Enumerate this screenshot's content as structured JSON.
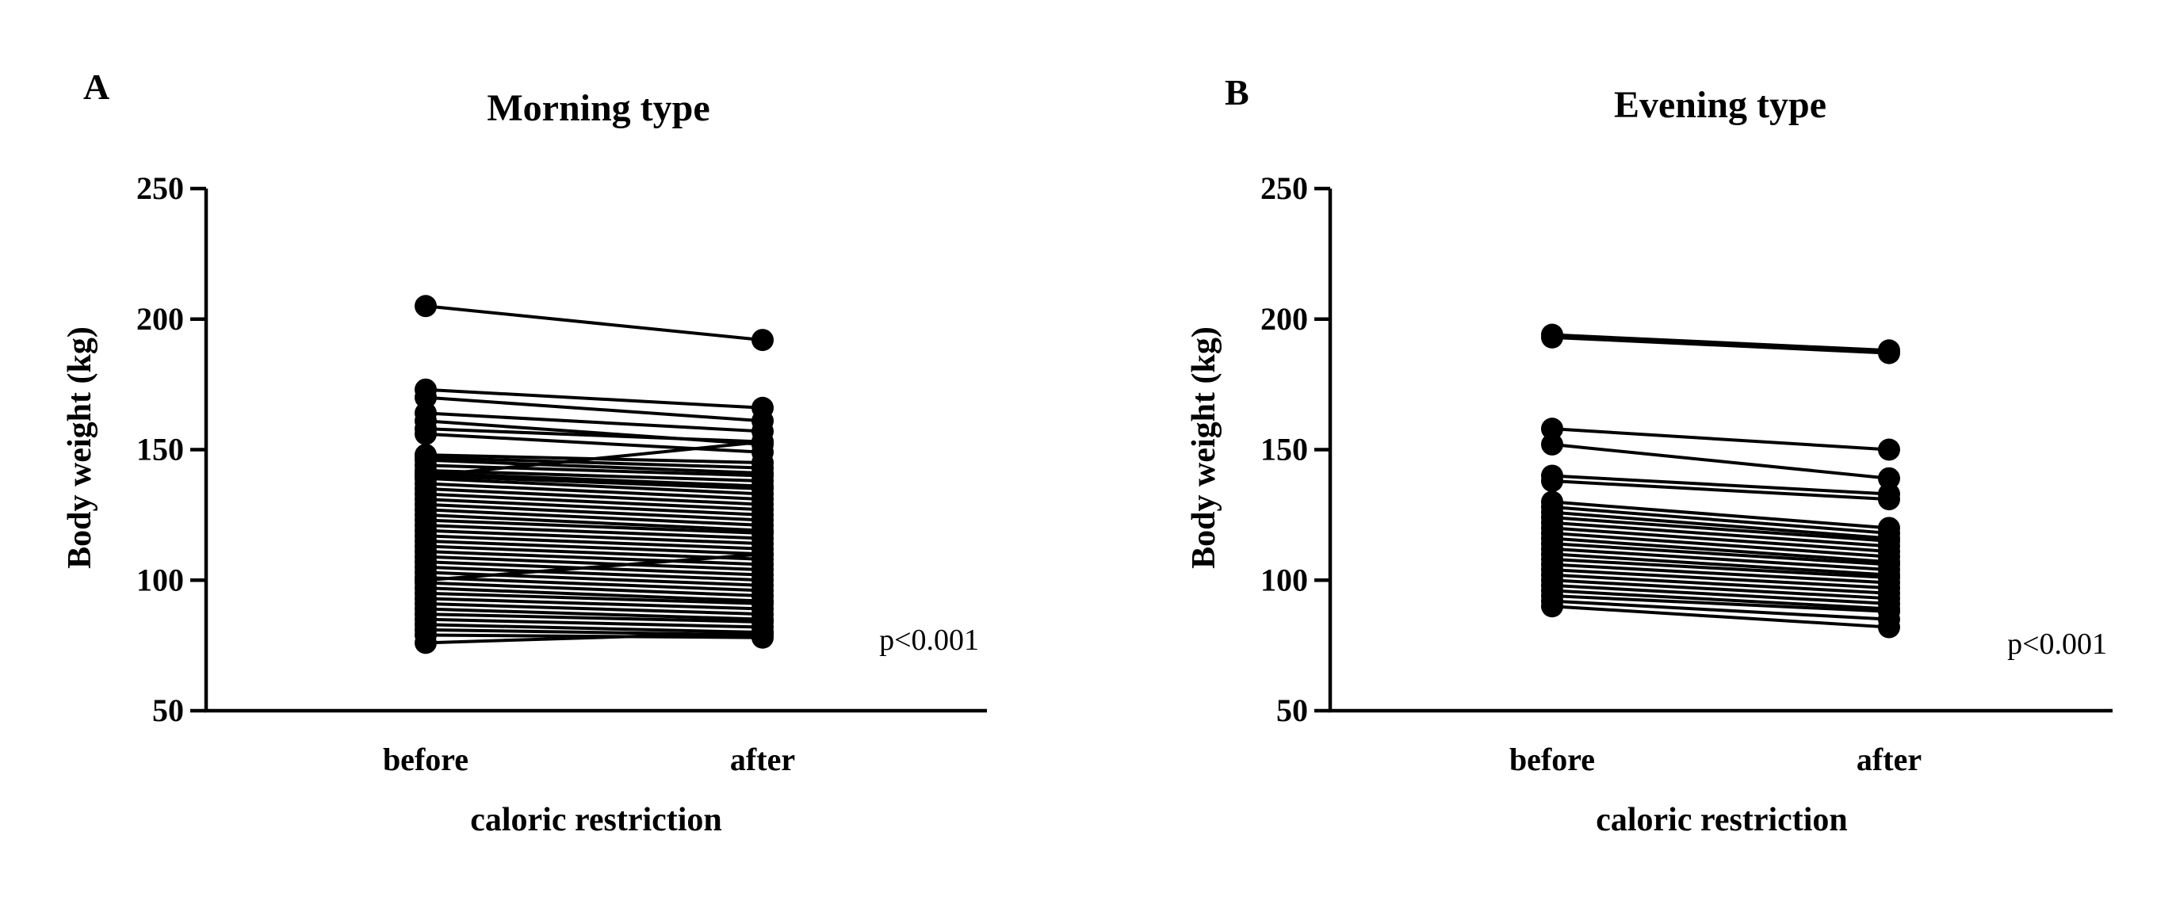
{
  "chart_data": [
    {
      "type": "line",
      "panel": "A",
      "title": "Morning type",
      "xlabel": "caloric restriction",
      "ylabel": "Body weight (kg)",
      "categories": [
        "before",
        "after"
      ],
      "ylim": [
        50,
        250
      ],
      "yticks": [
        50,
        100,
        150,
        200,
        250
      ],
      "annotation": "p<0.001",
      "pairs": [
        [
          205,
          192
        ],
        [
          173,
          166
        ],
        [
          170,
          161
        ],
        [
          164,
          157
        ],
        [
          161,
          152
        ],
        [
          158,
          153
        ],
        [
          156,
          149
        ],
        [
          148,
          145
        ],
        [
          147,
          143
        ],
        [
          146,
          141
        ],
        [
          144,
          140
        ],
        [
          142,
          138
        ],
        [
          141,
          136
        ],
        [
          140,
          135
        ],
        [
          139,
          133
        ],
        [
          137,
          131
        ],
        [
          135,
          129
        ],
        [
          133,
          127
        ],
        [
          131,
          125
        ],
        [
          129,
          123
        ],
        [
          127,
          121
        ],
        [
          125,
          119
        ],
        [
          123,
          118
        ],
        [
          121,
          116
        ],
        [
          119,
          114
        ],
        [
          117,
          112
        ],
        [
          115,
          110
        ],
        [
          113,
          108
        ],
        [
          111,
          106
        ],
        [
          109,
          104
        ],
        [
          107,
          102
        ],
        [
          105,
          100
        ],
        [
          103,
          98
        ],
        [
          101,
          96
        ],
        [
          99,
          94
        ],
        [
          97,
          92
        ],
        [
          95,
          91
        ],
        [
          93,
          89
        ],
        [
          91,
          87
        ],
        [
          89,
          85
        ],
        [
          87,
          84
        ],
        [
          85,
          82
        ],
        [
          83,
          80
        ],
        [
          81,
          79
        ],
        [
          79,
          78
        ],
        [
          76,
          80
        ],
        [
          140,
          153
        ],
        [
          100,
          110
        ]
      ]
    },
    {
      "type": "line",
      "panel": "B",
      "title": "Evening type",
      "xlabel": "caloric restriction",
      "ylabel": "Body weight (kg)",
      "categories": [
        "before",
        "after"
      ],
      "ylim": [
        50,
        250
      ],
      "yticks": [
        50,
        100,
        150,
        200,
        250
      ],
      "annotation": "p<0.001",
      "pairs": [
        [
          194,
          188
        ],
        [
          193,
          187
        ],
        [
          158,
          150
        ],
        [
          152,
          139
        ],
        [
          140,
          133
        ],
        [
          138,
          131
        ],
        [
          130,
          120
        ],
        [
          128,
          118
        ],
        [
          126,
          116
        ],
        [
          124,
          115
        ],
        [
          122,
          113
        ],
        [
          120,
          111
        ],
        [
          118,
          109
        ],
        [
          116,
          107
        ],
        [
          114,
          106
        ],
        [
          112,
          104
        ],
        [
          110,
          102
        ],
        [
          108,
          101
        ],
        [
          106,
          99
        ],
        [
          104,
          97
        ],
        [
          102,
          95
        ],
        [
          100,
          93
        ],
        [
          98,
          91
        ],
        [
          96,
          89
        ],
        [
          94,
          88
        ],
        [
          92,
          85
        ],
        [
          90,
          82
        ]
      ]
    }
  ]
}
